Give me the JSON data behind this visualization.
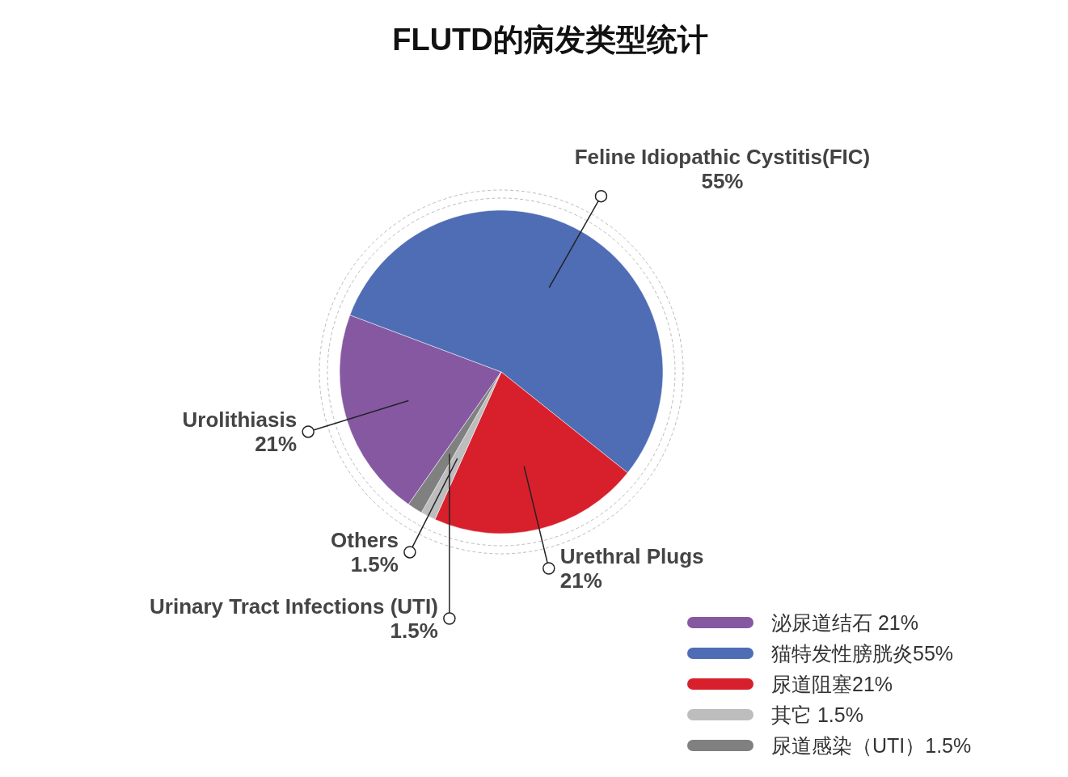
{
  "chart_data": {
    "type": "pie",
    "title": "FLUTD的病发类型统计",
    "categories": [
      "泌尿道结石 21%",
      "猫特发性膀胱炎55%",
      "尿道阻塞21%",
      "其它 1.5%",
      "尿道感染（UTI）1.5%"
    ],
    "values": [
      21,
      55,
      21,
      1.5,
      1.5
    ],
    "colors": [
      "#8658a2",
      "#4f6db5",
      "#d8202d",
      "#bdbdbd",
      "#808080"
    ],
    "value_labels": [
      "21%",
      "55%",
      "21%",
      "1.5%",
      "1.5%"
    ],
    "annotations": [
      "Urolithiasis",
      "Feline Idiopathic Cystitis(FIC)",
      "Urethral Plugs",
      "Others",
      "Urinary Tract Infections (UTI)"
    ],
    "legend": "bottom right"
  }
}
